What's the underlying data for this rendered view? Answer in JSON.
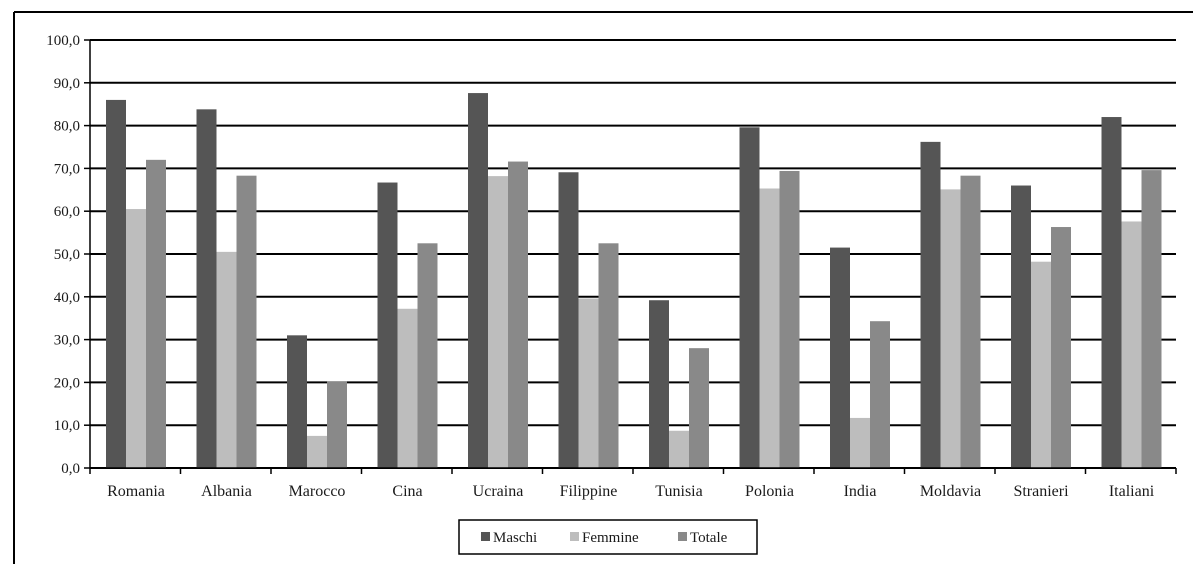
{
  "chart_data": {
    "type": "bar",
    "title": "",
    "xlabel": "",
    "ylabel": "",
    "ylim": [
      0,
      100
    ],
    "y_ticks": [
      "0,0",
      "10,0",
      "20,0",
      "30,0",
      "40,0",
      "50,0",
      "60,0",
      "70,0",
      "80,0",
      "90,0",
      "100,0"
    ],
    "grid": true,
    "legend_position": "bottom",
    "categories": [
      "Romania",
      "Albania",
      "Marocco",
      "Cina",
      "Ucraina",
      "Filippine",
      "Tunisia",
      "Polonia",
      "India",
      "Moldavia",
      "Stranieri",
      "Italiani"
    ],
    "series": [
      {
        "name": "Maschi",
        "color": "#555555",
        "values": [
          86.0,
          83.8,
          31.0,
          66.7,
          87.6,
          69.1,
          39.2,
          79.6,
          51.5,
          76.2,
          66.0,
          82.0
        ]
      },
      {
        "name": "Femmine",
        "color": "#bdbdbd",
        "values": [
          60.5,
          50.5,
          7.5,
          37.2,
          68.2,
          39.6,
          8.7,
          65.3,
          11.7,
          65.1,
          48.2,
          57.6
        ]
      },
      {
        "name": "Totale",
        "color": "#898989",
        "values": [
          72.0,
          68.3,
          20.2,
          52.5,
          71.6,
          52.5,
          28.0,
          69.4,
          34.3,
          68.3,
          56.3,
          69.6
        ]
      }
    ]
  }
}
